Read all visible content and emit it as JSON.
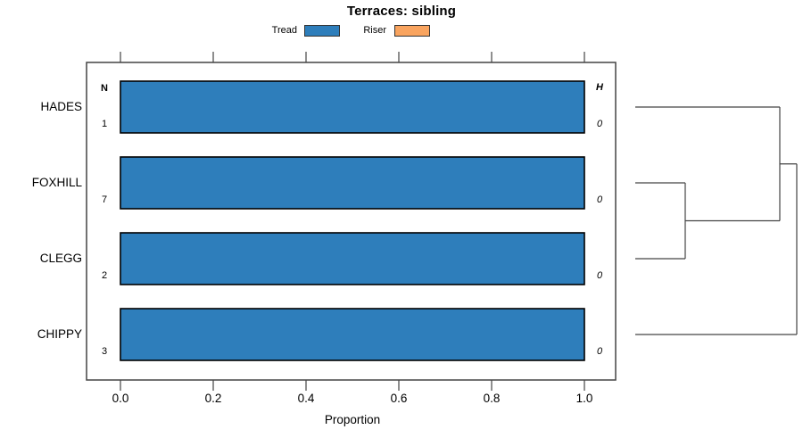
{
  "legend": {
    "items": [
      {
        "label": "Tread",
        "color": "#2E7EBB"
      },
      {
        "label": "Riser",
        "color": "#F9A45F"
      }
    ]
  },
  "colors": {
    "bar_fill": "#2E7EBB",
    "bar_border": "#000000",
    "frame": "#444444",
    "dendrogram_line": "#444444"
  },
  "chart_data": {
    "type": "bar",
    "orientation": "horizontal",
    "title": "Terraces: sibling",
    "xlabel": "Proportion",
    "xlim": [
      0,
      1
    ],
    "xticks": [
      "0.0",
      "0.2",
      "0.4",
      "0.6",
      "0.8",
      "1.0"
    ],
    "grid": false,
    "legend_position": "top",
    "categories": [
      "HADES",
      "FOXHILL",
      "CLEGG",
      "CHIPPY"
    ],
    "series": [
      {
        "name": "Tread",
        "color": "#2E7EBB",
        "values": [
          1.0,
          1.0,
          1.0,
          1.0
        ]
      },
      {
        "name": "Riser",
        "color": "#F9A45F",
        "values": [
          0.0,
          0.0,
          0.0,
          0.0
        ]
      }
    ],
    "n_column": {
      "header": "N",
      "values": [
        "1",
        "7",
        "2",
        "3"
      ]
    },
    "h_column": {
      "header": "H",
      "values": [
        "0",
        "0",
        "0",
        "0"
      ]
    },
    "dendrogram": {
      "side": "right",
      "leaves": [
        "HADES",
        "FOXHILL",
        "CLEGG",
        "CHIPPY"
      ],
      "leaf_start_x": 712,
      "merges": [
        {
          "a": 1,
          "b": 2,
          "x": 768
        },
        {
          "a": 0,
          "b": 4,
          "x": 874
        },
        {
          "a": 5,
          "b": 3,
          "x": 893
        }
      ]
    }
  }
}
